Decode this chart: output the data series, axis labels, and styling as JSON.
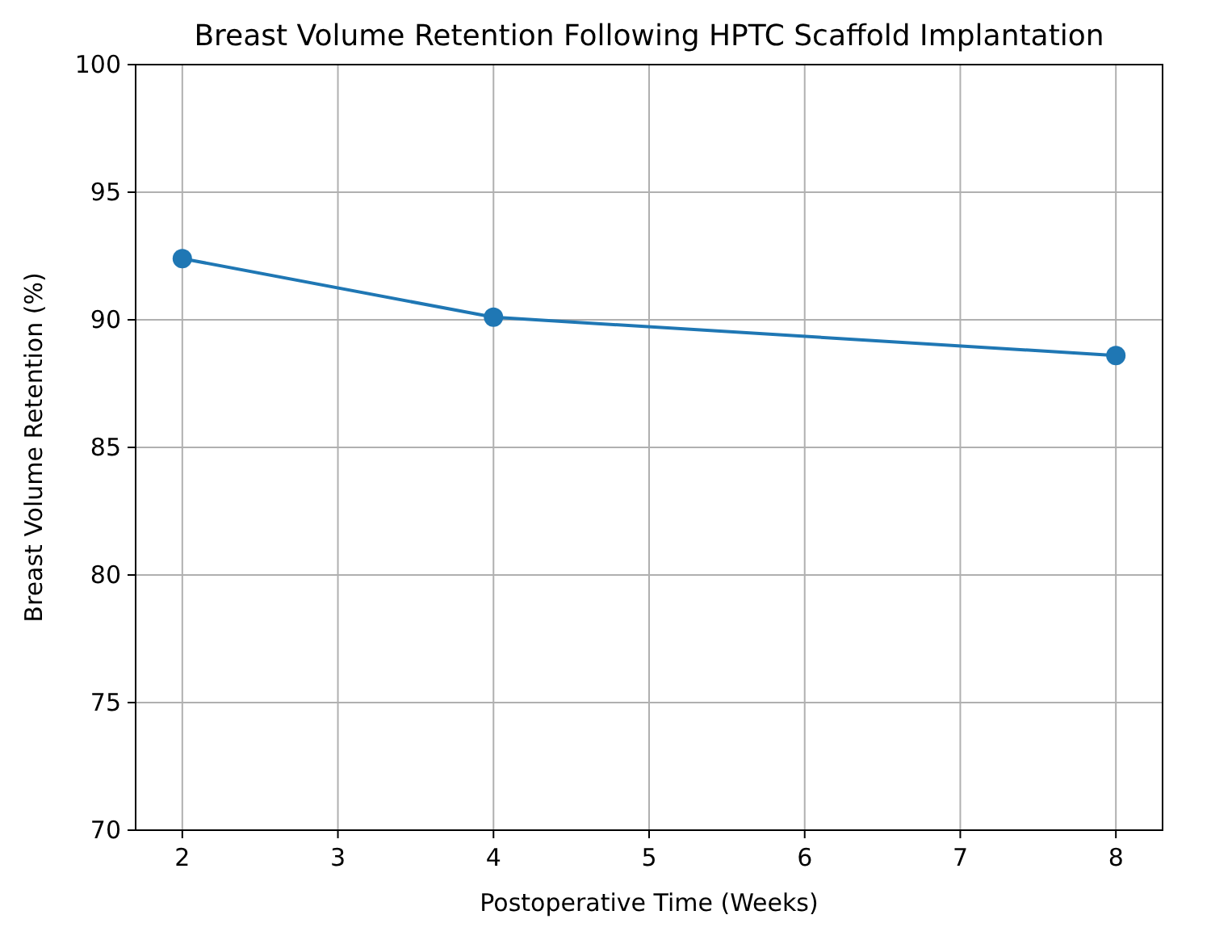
{
  "chart_data": {
    "type": "line",
    "title": "Breast Volume Retention Following HPTC Scaffold Implantation",
    "xlabel": "Postoperative Time (Weeks)",
    "ylabel": "Breast Volume Retention (%)",
    "x": [
      2,
      4,
      8
    ],
    "series": [
      {
        "color": "#1f77b4",
        "values": [
          92.4,
          90.1,
          88.6
        ]
      }
    ],
    "xlim": [
      1.7,
      8.3
    ],
    "xticks": [
      2,
      3,
      4,
      5,
      6,
      7,
      8
    ],
    "ylim": [
      70,
      100
    ],
    "yticks": [
      70,
      75,
      80,
      85,
      90,
      95,
      100
    ],
    "grid": true,
    "marker": "circle",
    "line_style": "solid"
  }
}
